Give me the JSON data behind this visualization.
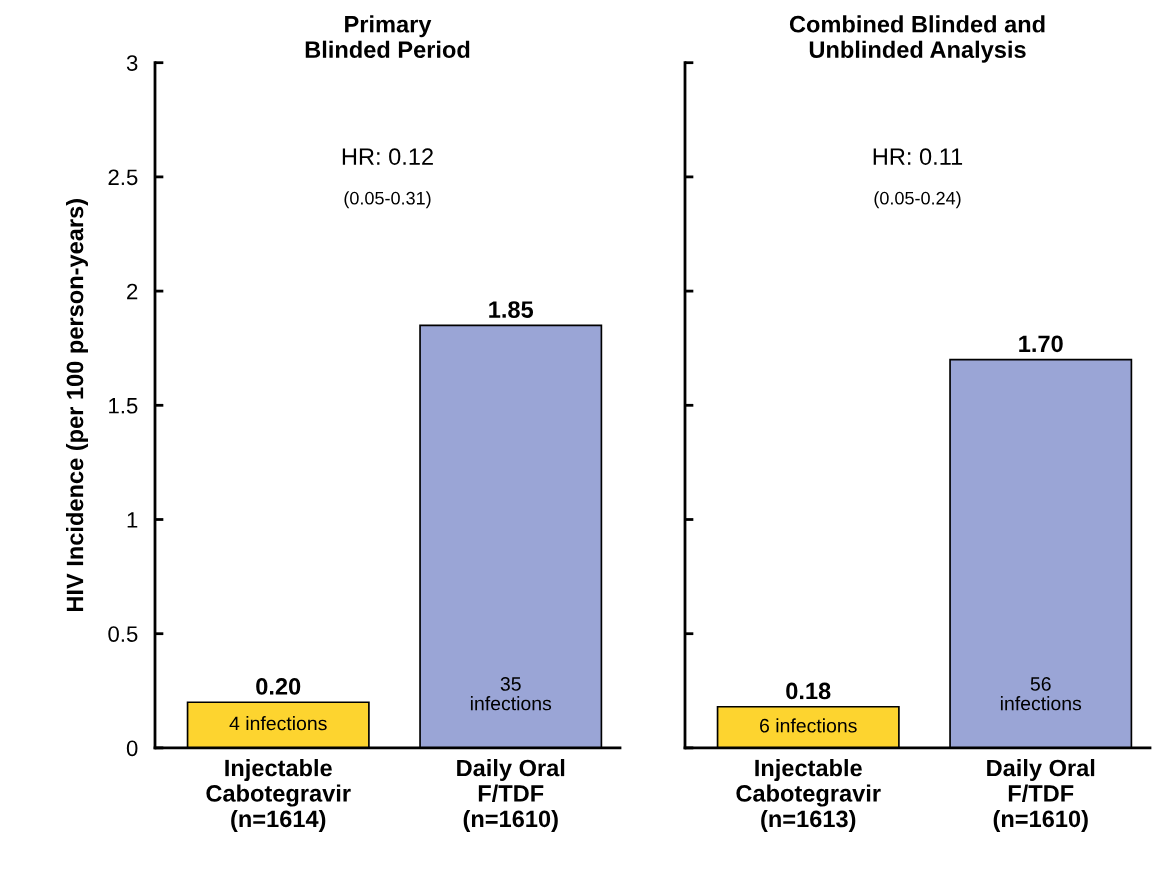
{
  "chart_data": [
    {
      "type": "bar",
      "title": "Primary\nBlinded Period",
      "ylabel": "HIV Incidence (per 100 person-years)",
      "categories": [
        "Injectable\nCabotegravir\n(n=1614)",
        "Daily Oral\nF/TDF\n(n=1610)"
      ],
      "values": [
        0.2,
        1.85
      ],
      "colors": [
        "#fdd42f",
        "#9aa5d6"
      ],
      "value_labels": [
        "0.20",
        "1.85"
      ],
      "ylim": [
        0,
        3
      ],
      "yticks": [
        0,
        0.5,
        1,
        1.5,
        2,
        2.5,
        3
      ],
      "grid": false,
      "annotations": [
        "HR: 0.12",
        "(0.05-0.31)",
        "4 infections",
        "35\ninfections"
      ]
    },
    {
      "type": "bar",
      "title": "Combined Blinded and\nUnblinded Analysis",
      "categories": [
        "Injectable\nCabotegravir\n(n=1613)",
        "Daily Oral\nF/TDF\n(n=1610)"
      ],
      "values": [
        0.18,
        1.7
      ],
      "colors": [
        "#fdd42f",
        "#9aa5d6"
      ],
      "value_labels": [
        "0.18",
        "1.70"
      ],
      "ylim": [
        0,
        3
      ],
      "yticks": [
        {
          "value": 0,
          "label": null
        },
        {
          "value": 0.5,
          "label": null
        },
        {
          "value": 1,
          "label": null
        },
        {
          "value": 1.5,
          "label": null
        },
        {
          "value": 2,
          "label": null
        },
        {
          "value": 2.5,
          "label": null
        },
        {
          "value": 3,
          "label": null
        }
      ],
      "tick_labels": "x",
      "grid": false,
      "annotations": [
        "HR: 0.11",
        "(0.05-0.24)",
        "6 infections",
        "56\ninfections"
      ]
    }
  ]
}
